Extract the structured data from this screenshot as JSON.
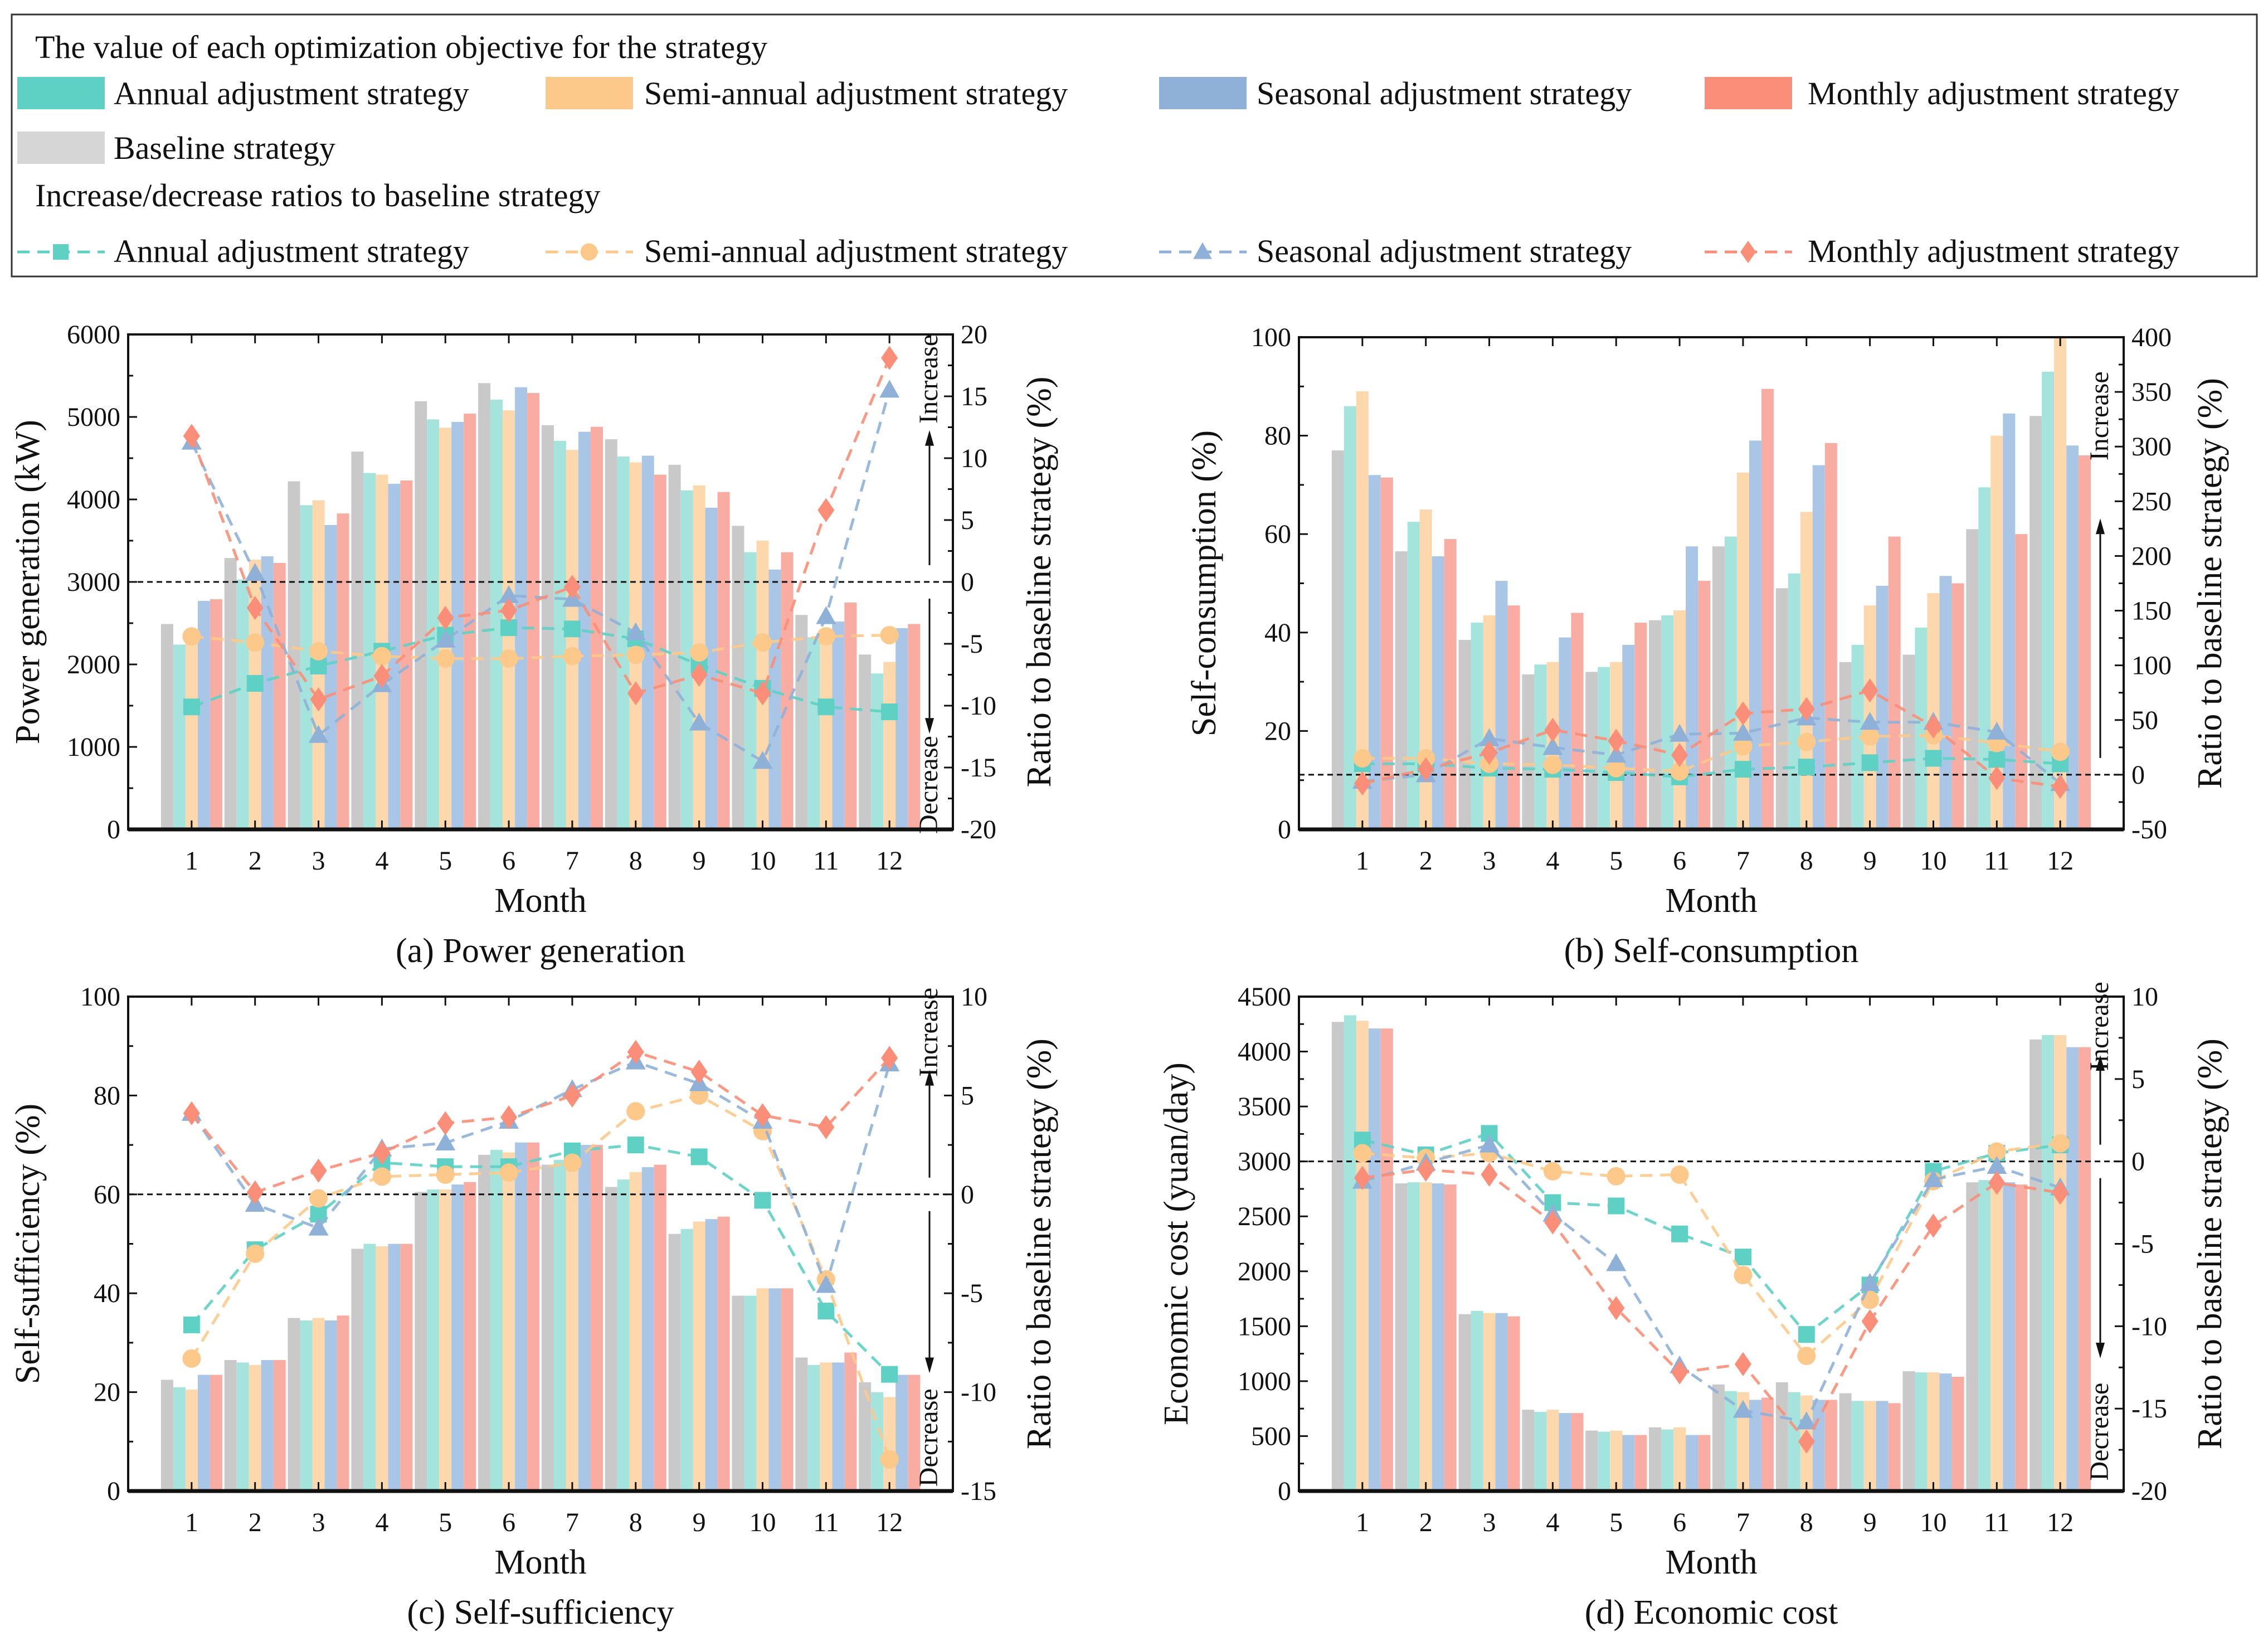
{
  "colors": {
    "annual": "#5fd0c4",
    "semi": "#fdc98a",
    "seasonal": "#8fb1d8",
    "monthly": "#fb8e78",
    "baseline": "#cccccc",
    "annual_bar": "#a5e4dd",
    "semi_bar": "#fdd8ac",
    "seasonal_bar": "#aac6e6",
    "monthly_bar": "#f9ada2",
    "baseline_bar": "#c9c9c9"
  },
  "legend": {
    "title1": "The value of each optimization objective for the strategy",
    "bars": [
      "Annual adjustment strategy",
      "Semi-annual adjustment strategy",
      "Seasonal adjustment strategy",
      "Monthly adjustment strategy",
      "Baseline strategy"
    ],
    "title2": "Increase/decrease ratios  to baseline strategy",
    "lines": [
      "Annual adjustment strategy",
      "Semi-annual adjustment strategy",
      "Seasonal adjustment strategy",
      "Monthly adjustment strategy"
    ],
    "markers": [
      "circle",
      "circle",
      "circle",
      "diamond"
    ]
  },
  "chart_data": [
    {
      "type": "bar+line",
      "caption": "(a) Power generation",
      "xlabel": "Month",
      "ylabel": "Power generation (kW)",
      "y2label": "Ratio to baseline strategy (%)",
      "ylim": [
        0,
        6000
      ],
      "yticks": [
        0,
        1000,
        2000,
        3000,
        4000,
        5000,
        6000
      ],
      "y2lim": [
        -20,
        20
      ],
      "y2ticks": [
        -20,
        -15,
        -10,
        -5,
        0,
        5,
        10,
        15,
        20
      ],
      "annotations": [
        "Increase",
        "Decrease"
      ],
      "categories": [
        "1",
        "2",
        "3",
        "4",
        "5",
        "6",
        "7",
        "8",
        "9",
        "10",
        "11",
        "12"
      ],
      "bars": {
        "baseline": [
          2490,
          3290,
          4220,
          4580,
          5190,
          5410,
          4900,
          4730,
          4420,
          3680,
          2600,
          2120
        ],
        "annual": [
          2240,
          3030,
          3930,
          4320,
          4970,
          5210,
          4710,
          4520,
          4110,
          3360,
          2330,
          1890
        ],
        "semi": [
          2340,
          3270,
          3990,
          4300,
          4870,
          5080,
          4600,
          4450,
          4170,
          3500,
          2340,
          2030
        ],
        "seasonal": [
          2770,
          3310,
          3690,
          4190,
          4940,
          5360,
          4820,
          4530,
          3900,
          3150,
          2520,
          2440
        ],
        "monthly": [
          2790,
          3230,
          3830,
          4230,
          5040,
          5290,
          4880,
          4300,
          4090,
          3360,
          2750,
          2490
        ]
      },
      "ratios": {
        "annual": [
          -10.1,
          -8.2,
          -6.8,
          -5.6,
          -4.3,
          -3.7,
          -3.8,
          -4.6,
          -6.7,
          -8.6,
          -10.1,
          -10.5
        ],
        "semi": [
          -4.4,
          -4.9,
          -5.6,
          -6.0,
          -6.2,
          -6.2,
          -6.0,
          -5.9,
          -5.7,
          -4.9,
          -4.4,
          -4.3
        ],
        "seasonal": [
          11.3,
          0.7,
          -12.4,
          -8.3,
          -4.7,
          -1.1,
          -1.4,
          -4.1,
          -11.4,
          -14.5,
          -2.8,
          15.5
        ],
        "monthly": [
          11.8,
          -2.1,
          -9.5,
          -7.6,
          -2.9,
          -2.3,
          -0.4,
          -9.0,
          -7.5,
          -9.0,
          5.8,
          18.1
        ]
      }
    },
    {
      "type": "bar+line",
      "caption": "(b) Self-consumption",
      "xlabel": "Month",
      "ylabel": "Self-consumption (%)",
      "y2label": "Ratio to baseline strategy (%)",
      "ylim": [
        0,
        100
      ],
      "yticks": [
        0,
        20,
        40,
        60,
        80,
        100
      ],
      "y2lim": [
        -50,
        400
      ],
      "y2ticks": [
        -50,
        0,
        50,
        100,
        150,
        200,
        250,
        300,
        350,
        400
      ],
      "annotations": [
        "Increase"
      ],
      "categories": [
        "1",
        "2",
        "3",
        "4",
        "5",
        "6",
        "7",
        "8",
        "9",
        "10",
        "11",
        "12"
      ],
      "bars": {
        "baseline": [
          77,
          56.5,
          38.5,
          31.5,
          32,
          42.5,
          57.5,
          49,
          34,
          35.5,
          61,
          84
        ],
        "annual": [
          86,
          62.5,
          42,
          33.5,
          33,
          43.5,
          59.5,
          52,
          37.5,
          41,
          69.5,
          93
        ],
        "semi": [
          89,
          65,
          43.5,
          34,
          34,
          44.5,
          72.5,
          64.5,
          45.5,
          48,
          80,
          100
        ],
        "seasonal": [
          72,
          55.5,
          50.5,
          39,
          37.5,
          57.5,
          79,
          74,
          49.5,
          51.5,
          84.5,
          78
        ],
        "monthly": [
          71.5,
          59,
          45.5,
          44,
          42,
          50.5,
          89.5,
          78.5,
          59.5,
          50,
          60,
          76
        ]
      },
      "ratios": {
        "annual": [
          10,
          10,
          6,
          5,
          2,
          -2,
          5,
          7,
          11,
          15,
          14,
          10
        ],
        "semi": [
          15,
          15,
          10,
          9,
          6,
          3,
          26,
          30,
          35,
          36,
          29,
          21
        ],
        "seasonal": [
          -6,
          0,
          33,
          25,
          18,
          37,
          38,
          52,
          48,
          48,
          39,
          -8
        ],
        "monthly": [
          -8,
          5,
          20,
          41,
          31,
          18,
          56,
          60,
          77,
          44,
          -3,
          -11
        ]
      }
    },
    {
      "type": "bar+line",
      "caption": "(c) Self-sufficiency",
      "xlabel": "Month",
      "ylabel": "Self-sufficiency (%)",
      "y2label": "Ratio to baseline strategy (%)",
      "ylim": [
        0,
        100
      ],
      "yticks": [
        0,
        20,
        40,
        60,
        80,
        100
      ],
      "y2lim": [
        -15,
        10
      ],
      "y2ticks": [
        -15,
        -10,
        -5,
        0,
        5,
        10
      ],
      "annotations": [
        "Increase",
        "Decrease"
      ],
      "categories": [
        "1",
        "2",
        "3",
        "4",
        "5",
        "6",
        "7",
        "8",
        "9",
        "10",
        "11",
        "12"
      ],
      "bars": {
        "baseline": [
          22.5,
          26.5,
          35,
          49,
          60.5,
          68,
          66,
          61.5,
          52,
          39.5,
          27,
          22
        ],
        "annual": [
          21,
          26,
          34.5,
          50,
          61,
          69,
          67,
          63,
          53,
          39.5,
          25.5,
          20
        ],
        "semi": [
          20.5,
          25.5,
          35,
          49.5,
          61,
          68.5,
          68.5,
          64.5,
          54.5,
          41,
          26,
          19
        ],
        "seasonal": [
          23.5,
          26.5,
          34.5,
          50,
          62,
          70.5,
          70,
          65.5,
          55,
          41,
          26,
          23.5
        ],
        "monthly": [
          23.5,
          26.5,
          35.5,
          50,
          62.5,
          70.5,
          70,
          66,
          55.5,
          41,
          28,
          23.5
        ]
      },
      "ratios": {
        "annual": [
          -6.6,
          -2.8,
          -1.0,
          1.6,
          1.4,
          1.4,
          2.2,
          2.5,
          1.9,
          -0.3,
          -5.9,
          -9.1
        ],
        "semi": [
          -8.3,
          -3.0,
          -0.2,
          0.9,
          1.0,
          1.1,
          1.6,
          4.2,
          5.0,
          3.2,
          -4.3,
          -13.4
        ],
        "seasonal": [
          4.1,
          -0.5,
          -1.7,
          2.3,
          2.6,
          3.7,
          5.3,
          6.7,
          5.6,
          3.7,
          -4.6,
          6.6
        ],
        "monthly": [
          4.1,
          0.1,
          1.2,
          2.1,
          3.6,
          3.9,
          5.0,
          7.2,
          6.2,
          4.0,
          3.4,
          6.9
        ]
      }
    },
    {
      "type": "bar+line",
      "caption": "(d) Economic cost",
      "xlabel": "Month",
      "ylabel": "Economic cost (yuan/day)",
      "y2label": "Ratio to baseline strategy (%)",
      "ylim": [
        0,
        4500
      ],
      "yticks": [
        0,
        500,
        1000,
        1500,
        2000,
        2500,
        3000,
        3500,
        4000,
        4500
      ],
      "y2lim": [
        -20,
        10
      ],
      "y2ticks": [
        -20,
        -15,
        -10,
        -5,
        0,
        5,
        10
      ],
      "annotations": [
        "Increase",
        "Decrease"
      ],
      "categories": [
        "1",
        "2",
        "3",
        "4",
        "5",
        "6",
        "7",
        "8",
        "9",
        "10",
        "11",
        "12"
      ],
      "bars": {
        "baseline": [
          4270,
          2800,
          1610,
          740,
          550,
          580,
          970,
          990,
          890,
          1090,
          2810,
          4110
        ],
        "annual": [
          4330,
          2810,
          1640,
          720,
          540,
          560,
          910,
          900,
          820,
          1080,
          2830,
          4150
        ],
        "semi": [
          4280,
          2810,
          1620,
          740,
          550,
          580,
          900,
          870,
          820,
          1080,
          2830,
          4150
        ],
        "seasonal": [
          4210,
          2800,
          1620,
          710,
          510,
          510,
          830,
          830,
          820,
          1070,
          2810,
          4040
        ],
        "monthly": [
          4210,
          2790,
          1590,
          710,
          510,
          510,
          850,
          830,
          800,
          1040,
          2790,
          4040
        ]
      },
      "ratios": {
        "annual": [
          1.3,
          0.4,
          1.7,
          -2.5,
          -2.7,
          -4.4,
          -5.8,
          -10.5,
          -7.5,
          -0.6,
          0.5,
          1.0
        ],
        "semi": [
          0.5,
          0.2,
          0.5,
          -0.6,
          -0.9,
          -0.8,
          -6.9,
          -11.8,
          -8.4,
          -1.2,
          0.6,
          1.1
        ],
        "seasonal": [
          -1.2,
          -0.1,
          1.0,
          -3.2,
          -6.2,
          -12.4,
          -15.1,
          -15.8,
          -7.4,
          -1.1,
          -0.3,
          -1.6
        ],
        "monthly": [
          -1.0,
          -0.5,
          -0.8,
          -3.7,
          -8.9,
          -12.8,
          -12.3,
          -17.0,
          -9.7,
          -3.9,
          -1.3,
          -1.9
        ]
      }
    }
  ]
}
